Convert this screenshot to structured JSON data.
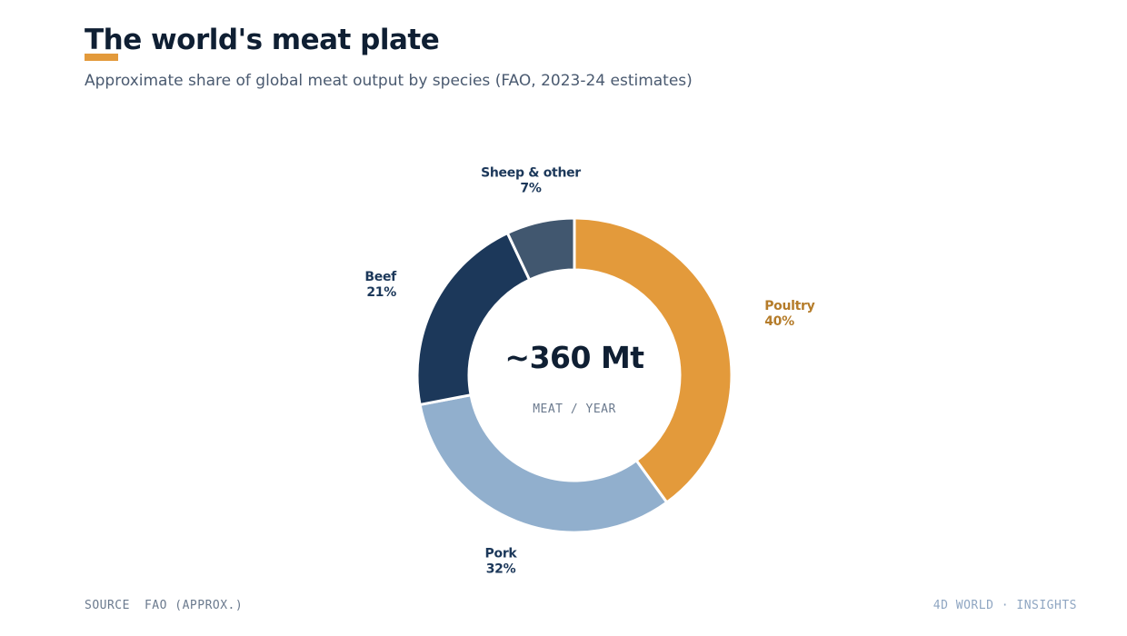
{
  "header": {
    "title": "The world's meat plate",
    "subtitle": "Approximate share of global meat output by species (FAO, 2023-24 estimates)"
  },
  "colors": {
    "accent": "#e39a3b",
    "title": "#0f1f33",
    "poultry": "#e39a3b",
    "pork": "#91afcd",
    "beef": "#1c385a",
    "sheep": "#41576f"
  },
  "chart_data": {
    "type": "pie",
    "style": "donut",
    "center_value": "~360 Mt",
    "center_label": "MEAT / YEAR",
    "slices": [
      {
        "name": "Poultry",
        "value": 40,
        "label": "40%",
        "color": "#e39a3b"
      },
      {
        "name": "Pork",
        "value": 32,
        "label": "32%",
        "color": "#91afcd"
      },
      {
        "name": "Beef",
        "value": 21,
        "label": "21%",
        "color": "#1c385a"
      },
      {
        "name": "Sheep & other",
        "value": 7,
        "label": "7%",
        "color": "#41576f"
      }
    ]
  },
  "footer": {
    "source_label": "SOURCE",
    "source_value": "FAO (APPROX.)",
    "brand": "4D WORLD · INSIGHTS"
  }
}
